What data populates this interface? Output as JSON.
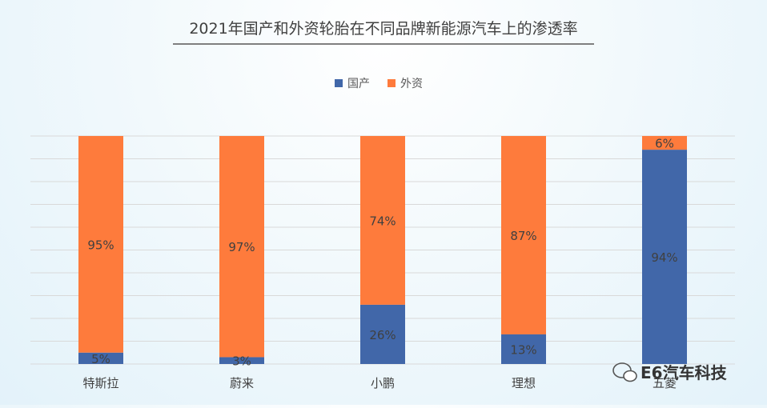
{
  "chart_data": {
    "type": "bar",
    "stacked": true,
    "percent": true,
    "title": "2021年国产和外资轮胎在不同品牌新能源汽车上的渗透率",
    "categories": [
      "特斯拉",
      "蔚来",
      "小鹏",
      "理想",
      "五菱"
    ],
    "series": [
      {
        "name": "国产",
        "color": "#4167a9",
        "values": [
          5,
          3,
          26,
          13,
          94
        ],
        "labels": [
          "5%",
          "3%",
          "26%",
          "13%",
          "94%"
        ]
      },
      {
        "name": "外资",
        "color": "#fe7b3c",
        "values": [
          95,
          97,
          74,
          87,
          6
        ],
        "labels": [
          "95%",
          "97%",
          "74%",
          "87%",
          "6%"
        ]
      }
    ],
    "ylim": [
      0,
      100
    ],
    "grid": true,
    "legend": "top-center"
  },
  "watermark": {
    "text": "E6汽车科技",
    "icon": "wechat-icon"
  }
}
